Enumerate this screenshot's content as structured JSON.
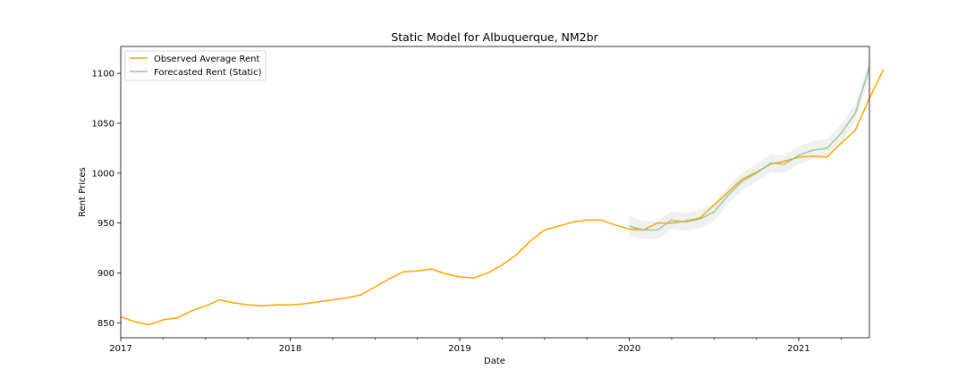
{
  "chart_data": {
    "type": "line",
    "title": "Static Model for Albuquerque, NM2br",
    "xlabel": "Date",
    "ylabel": "Rent Prices",
    "xlim": [
      "2017-01",
      "2021-06"
    ],
    "ylim": [
      835,
      1127
    ],
    "x_ticks": [
      {
        "date": "2017-01",
        "label": "2017"
      },
      {
        "date": "2018-01",
        "label": "2018"
      },
      {
        "date": "2019-01",
        "label": "2019"
      },
      {
        "date": "2020-01",
        "label": "2020"
      },
      {
        "date": "2021-01",
        "label": "2021"
      }
    ],
    "y_ticks": [
      {
        "value": 850,
        "label": "850"
      },
      {
        "value": 900,
        "label": "900"
      },
      {
        "value": 950,
        "label": "950"
      },
      {
        "value": 1000,
        "label": "1000"
      },
      {
        "value": 1050,
        "label": "1050"
      },
      {
        "value": 1100,
        "label": "1100"
      }
    ],
    "legend_position": "top-left",
    "series": [
      {
        "name": "Observed Average Rent",
        "color": "#ffa500",
        "start": "2017-01",
        "values": [
          856,
          851,
          848,
          853,
          855,
          862,
          867,
          873,
          870,
          868,
          867,
          868,
          868,
          869,
          871,
          873,
          875,
          878,
          886,
          894,
          901,
          902,
          904,
          899,
          896,
          895,
          900,
          908,
          918,
          932,
          943,
          947,
          951,
          953,
          953,
          948,
          944,
          943,
          950,
          950,
          952,
          955,
          968,
          981,
          994,
          1001,
          1009,
          1012,
          1016,
          1017,
          1016,
          1030,
          1043,
          1075,
          1104
        ]
      },
      {
        "name": "Forecasted Rent (Static)",
        "color": "#90c890",
        "start": "2020-01",
        "values": [
          947,
          943,
          943,
          953,
          951,
          954,
          961,
          978,
          992,
          1000,
          1010,
          1009,
          1018,
          1023,
          1025,
          1040,
          1060,
          1106
        ],
        "ci_lower": [
          937,
          934,
          934,
          944,
          942,
          945,
          952,
          969,
          983,
          991,
          1001,
          1000,
          1009,
          1014,
          1016,
          1031,
          1051,
          1097
        ],
        "ci_upper": [
          957,
          952,
          952,
          962,
          960,
          963,
          970,
          987,
          1001,
          1009,
          1019,
          1018,
          1027,
          1032,
          1034,
          1049,
          1069,
          1115
        ]
      }
    ]
  }
}
